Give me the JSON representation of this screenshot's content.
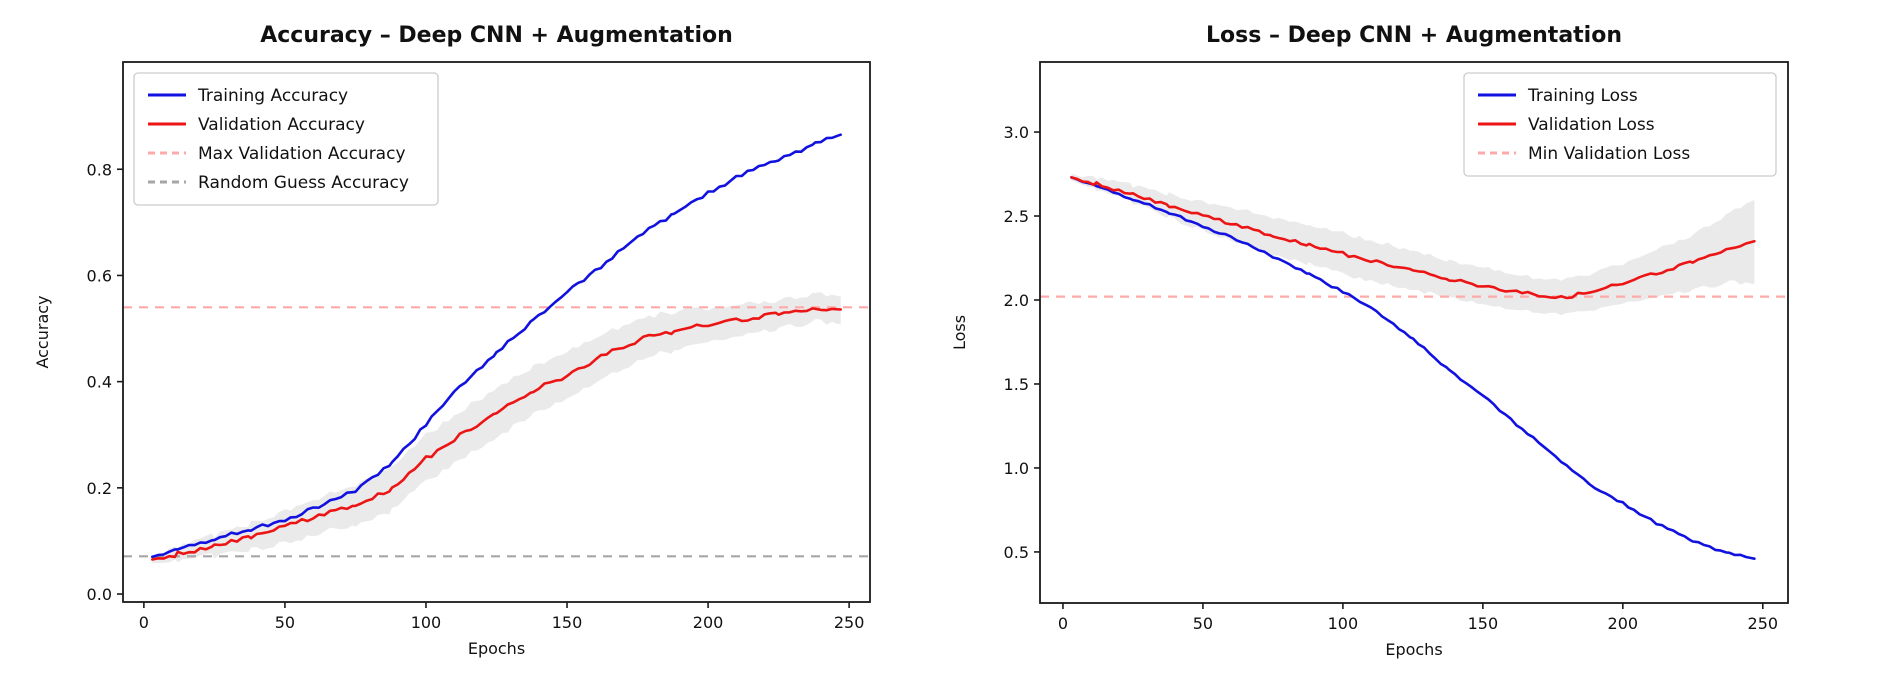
{
  "figure": {
    "background": "#ffffff"
  },
  "chart_data": [
    {
      "type": "line",
      "title": "Accuracy – Deep CNN + Augmentation",
      "xlabel": "Epochs",
      "ylabel": "Accuracy",
      "xlim": [
        -7.4,
        257.4
      ],
      "ylim": [
        -0.015,
        1.002
      ],
      "xticks": [
        0,
        50,
        100,
        150,
        200,
        250
      ],
      "yticks": [
        0.0,
        0.2,
        0.4,
        0.6,
        0.8
      ],
      "tick_decimals": 1,
      "legend_pos": "top-left",
      "legend_size": [
        304,
        132
      ],
      "epochs": [
        3,
        12,
        25,
        38,
        50,
        62,
        75,
        88,
        100,
        112,
        125,
        138,
        150,
        162,
        175,
        188,
        200,
        212,
        225,
        238,
        247
      ],
      "series": [
        {
          "name": "Training Accuracy",
          "color": "#1212e0",
          "dash": null,
          "jitter": 0.0035,
          "values": [
            0.07,
            0.085,
            0.104,
            0.122,
            0.14,
            0.165,
            0.196,
            0.245,
            0.32,
            0.39,
            0.455,
            0.515,
            0.568,
            0.617,
            0.672,
            0.717,
            0.755,
            0.79,
            0.818,
            0.848,
            0.865
          ]
        },
        {
          "name": "Validation Accuracy",
          "color": "#ec1515",
          "dash": null,
          "jitter": 0.0045,
          "values": [
            0.065,
            0.075,
            0.091,
            0.108,
            0.127,
            0.147,
            0.169,
            0.197,
            0.255,
            0.3,
            0.34,
            0.382,
            0.412,
            0.448,
            0.478,
            0.495,
            0.507,
            0.517,
            0.527,
            0.539,
            0.536
          ],
          "band": [
            0.008,
            0.013,
            0.019,
            0.025,
            0.03,
            0.034,
            0.038,
            0.041,
            0.043,
            0.045,
            0.046,
            0.045,
            0.044,
            0.042,
            0.039,
            0.036,
            0.032,
            0.029,
            0.027,
            0.026,
            0.026
          ],
          "band_color": "#dcdcdc"
        }
      ],
      "ref_lines": [
        {
          "name": "Max Validation Accuracy",
          "value": 0.54,
          "color": "#ffaaaa"
        },
        {
          "name": "Random Guess Accuracy",
          "value": 0.071,
          "color": "#a6a6a6"
        }
      ]
    },
    {
      "type": "line",
      "title": "Loss – Deep CNN + Augmentation",
      "xlabel": "Epochs",
      "ylabel": "Loss",
      "xlim": [
        -8.2,
        259.0
      ],
      "ylim": [
        0.196,
        3.417
      ],
      "xticks": [
        0,
        50,
        100,
        150,
        200,
        250
      ],
      "yticks": [
        0.5,
        1.0,
        1.5,
        2.0,
        2.5,
        3.0
      ],
      "tick_decimals": 1,
      "legend_pos": "top-right",
      "legend_size": [
        312,
        103
      ],
      "epochs": [
        3,
        12,
        25,
        38,
        50,
        62,
        75,
        88,
        100,
        112,
        125,
        138,
        150,
        162,
        170,
        180,
        190,
        200,
        212,
        225,
        238,
        247
      ],
      "series": [
        {
          "name": "Training Loss",
          "color": "#1212e0",
          "dash": null,
          "jitter": 0.007,
          "values": [
            2.73,
            2.68,
            2.6,
            2.52,
            2.44,
            2.36,
            2.26,
            2.15,
            2.05,
            1.93,
            1.77,
            1.58,
            1.43,
            1.26,
            1.15,
            1.01,
            0.88,
            0.79,
            0.67,
            0.565,
            0.49,
            0.46
          ]
        },
        {
          "name": "Validation Loss",
          "color": "#ec1515",
          "dash": null,
          "jitter": 0.011,
          "values": [
            2.73,
            2.69,
            2.63,
            2.56,
            2.5,
            2.445,
            2.385,
            2.325,
            2.275,
            2.23,
            2.175,
            2.12,
            2.085,
            2.05,
            2.03,
            2.02,
            2.05,
            2.1,
            2.16,
            2.225,
            2.31,
            2.35
          ],
          "band": [
            0.02,
            0.035,
            0.05,
            0.07,
            0.085,
            0.1,
            0.11,
            0.115,
            0.12,
            0.12,
            0.115,
            0.11,
            0.11,
            0.105,
            0.1,
            0.1,
            0.11,
            0.12,
            0.14,
            0.165,
            0.205,
            0.25
          ],
          "band_color": "#dcdcdc"
        }
      ],
      "ref_lines": [
        {
          "name": "Min Validation Loss",
          "value": 2.02,
          "color": "#ffaaaa"
        }
      ]
    }
  ],
  "style": {
    "spine_color": "#1a1a1a",
    "title_size": 22,
    "tick_size": 16,
    "label_size": 16,
    "legend_size": 17
  }
}
